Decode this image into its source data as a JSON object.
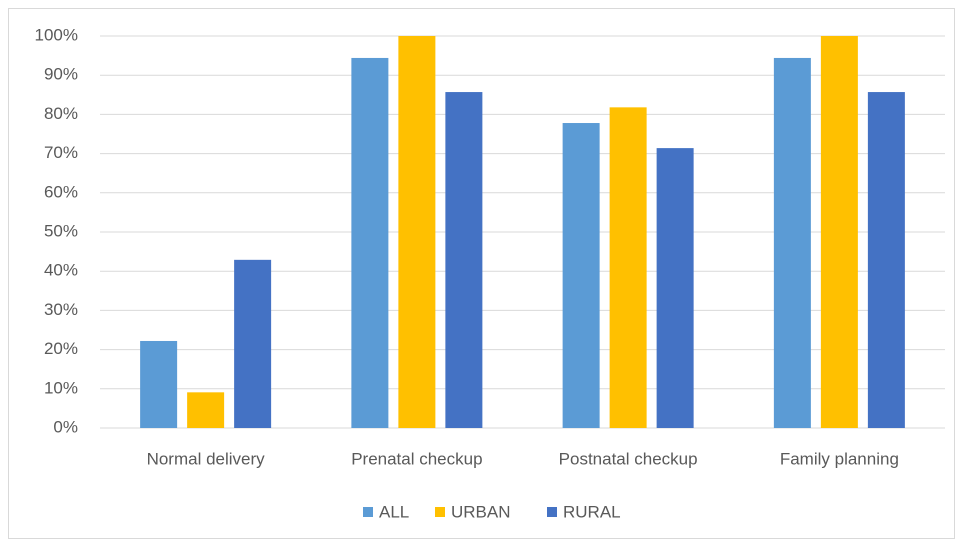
{
  "chart_data": {
    "type": "bar",
    "categories": [
      "Normal delivery",
      "Prenatal checkup",
      "Postnatal checkup",
      "Family planning"
    ],
    "series": [
      {
        "name": "ALL",
        "color": "#5b9bd5",
        "values": [
          22.2,
          94.4,
          77.8,
          94.4
        ]
      },
      {
        "name": "URBAN",
        "color": "#ffc000",
        "values": [
          9.1,
          100,
          81.8,
          100
        ]
      },
      {
        "name": "RURAL",
        "color": "#4472c4",
        "values": [
          42.9,
          85.7,
          71.4,
          85.7
        ]
      }
    ],
    "ylim": [
      0,
      100
    ],
    "yticks": [
      {
        "value": 0,
        "label": "0%"
      },
      {
        "value": 10,
        "label": "10%"
      },
      {
        "value": 20,
        "label": "20%"
      },
      {
        "value": 30,
        "label": "30%"
      },
      {
        "value": 40,
        "label": "40%"
      },
      {
        "value": 50,
        "label": "50%"
      },
      {
        "value": 60,
        "label": "60%"
      },
      {
        "value": 70,
        "label": "70%"
      },
      {
        "value": 80,
        "label": "80%"
      },
      {
        "value": 90,
        "label": "90%"
      },
      {
        "value": 100,
        "label": "100%"
      }
    ],
    "grid": true,
    "legend": "bottom"
  }
}
